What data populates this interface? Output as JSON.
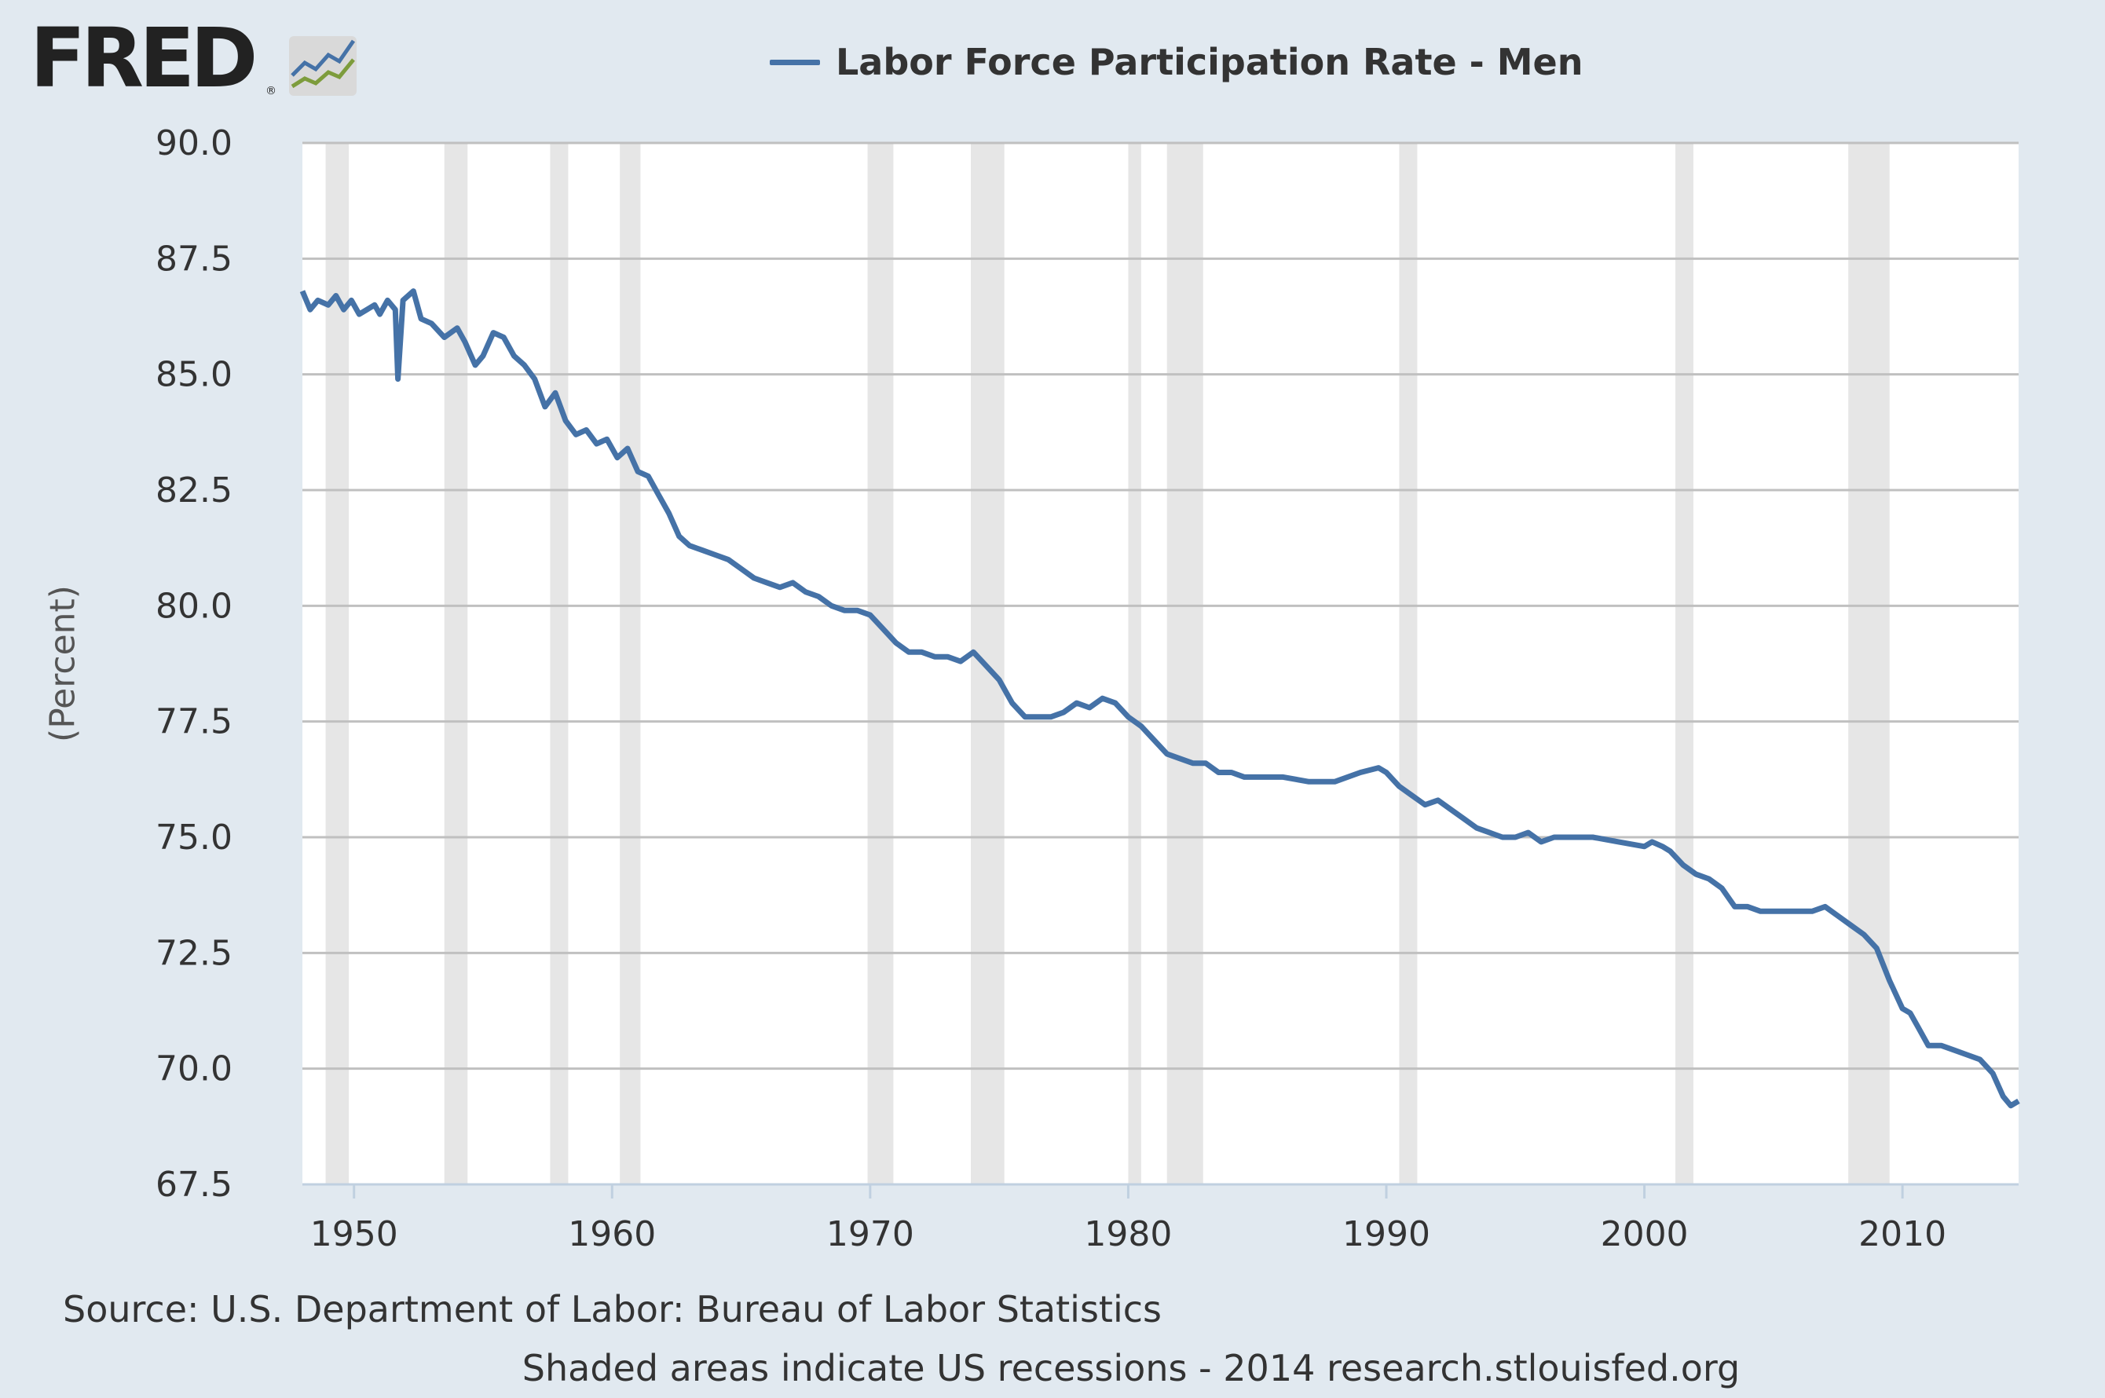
{
  "logo": {
    "text": "FRED",
    "reg": "®"
  },
  "chart_data": {
    "type": "line",
    "title": "",
    "xlabel": "",
    "ylabel": "(Percent)",
    "xlim": [
      1948.0,
      2014.5
    ],
    "ylim": [
      67.5,
      90.0
    ],
    "yticks": [
      "90.0",
      "87.5",
      "85.0",
      "82.5",
      "80.0",
      "77.5",
      "75.0",
      "72.5",
      "70.0",
      "67.5"
    ],
    "xticks": [
      "1950",
      "1960",
      "1970",
      "1980",
      "1990",
      "2000",
      "2010"
    ],
    "grid": true,
    "legend_position": "top-center",
    "series": [
      {
        "name": "Labor Force Participation Rate - Men",
        "color": "#4572a7",
        "x": [
          1948.0,
          1948.3,
          1948.6,
          1949.0,
          1949.3,
          1949.6,
          1949.9,
          1950.2,
          1950.5,
          1950.8,
          1951.0,
          1951.3,
          1951.6,
          1951.7,
          1951.9,
          1952.3,
          1952.6,
          1953.0,
          1953.5,
          1954.0,
          1954.3,
          1954.7,
          1955.0,
          1955.4,
          1955.8,
          1956.2,
          1956.6,
          1957.0,
          1957.4,
          1957.8,
          1958.2,
          1958.6,
          1959.0,
          1959.4,
          1959.8,
          1960.2,
          1960.6,
          1961.0,
          1961.4,
          1961.8,
          1962.2,
          1962.6,
          1963.0,
          1963.5,
          1964.0,
          1964.5,
          1965.0,
          1965.5,
          1966.0,
          1966.5,
          1967.0,
          1967.5,
          1968.0,
          1968.5,
          1969.0,
          1969.5,
          1970.0,
          1970.5,
          1971.0,
          1971.5,
          1972.0,
          1972.5,
          1973.0,
          1973.5,
          1974.0,
          1974.5,
          1975.0,
          1975.5,
          1976.0,
          1976.5,
          1977.0,
          1977.5,
          1978.0,
          1978.5,
          1979.0,
          1979.5,
          1980.0,
          1980.5,
          1981.0,
          1981.5,
          1982.0,
          1982.5,
          1983.0,
          1983.5,
          1984.0,
          1984.5,
          1985.0,
          1986.0,
          1987.0,
          1988.0,
          1989.0,
          1989.7,
          1990.0,
          1990.5,
          1991.0,
          1991.5,
          1992.0,
          1992.5,
          1993.0,
          1993.5,
          1994.0,
          1994.5,
          1995.0,
          1995.5,
          1996.0,
          1996.5,
          1997.0,
          1998.0,
          1999.0,
          2000.0,
          2000.3,
          2000.7,
          2001.0,
          2001.5,
          2002.0,
          2002.5,
          2003.0,
          2003.5,
          2004.0,
          2004.5,
          2005.0,
          2005.5,
          2006.0,
          2006.5,
          2007.0,
          2007.5,
          2008.0,
          2008.5,
          2009.0,
          2009.5,
          2010.0,
          2010.3,
          2010.6,
          2011.0,
          2011.5,
          2012.0,
          2012.5,
          2013.0,
          2013.5,
          2013.9,
          2014.2,
          2014.5
        ],
        "y": [
          86.8,
          86.4,
          86.6,
          86.5,
          86.7,
          86.4,
          86.6,
          86.3,
          86.4,
          86.5,
          86.3,
          86.6,
          86.4,
          84.9,
          86.6,
          86.8,
          86.2,
          86.1,
          85.8,
          86.0,
          85.7,
          85.2,
          85.4,
          85.9,
          85.8,
          85.4,
          85.2,
          84.9,
          84.3,
          84.6,
          84.0,
          83.7,
          83.8,
          83.5,
          83.6,
          83.2,
          83.4,
          82.9,
          82.8,
          82.4,
          82.0,
          81.5,
          81.3,
          81.2,
          81.1,
          81.0,
          80.8,
          80.6,
          80.5,
          80.4,
          80.5,
          80.3,
          80.2,
          80.0,
          79.9,
          79.9,
          79.8,
          79.5,
          79.2,
          79.0,
          79.0,
          78.9,
          78.9,
          78.8,
          79.0,
          78.7,
          78.4,
          77.9,
          77.6,
          77.6,
          77.6,
          77.7,
          77.9,
          77.8,
          78.0,
          77.9,
          77.6,
          77.4,
          77.1,
          76.8,
          76.7,
          76.6,
          76.6,
          76.4,
          76.4,
          76.3,
          76.3,
          76.3,
          76.2,
          76.2,
          76.4,
          76.5,
          76.4,
          76.1,
          75.9,
          75.7,
          75.8,
          75.6,
          75.4,
          75.2,
          75.1,
          75.0,
          75.0,
          75.1,
          74.9,
          75.0,
          75.0,
          75.0,
          74.9,
          74.8,
          74.9,
          74.8,
          74.7,
          74.4,
          74.2,
          74.1,
          73.9,
          73.5,
          73.5,
          73.4,
          73.4,
          73.4,
          73.4,
          73.4,
          73.5,
          73.3,
          73.1,
          72.9,
          72.6,
          71.9,
          71.3,
          71.2,
          70.9,
          70.5,
          70.5,
          70.4,
          70.3,
          70.2,
          69.9,
          69.4,
          69.2,
          69.3
        ]
      }
    ],
    "recessions": [
      [
        1948.9,
        1949.8
      ],
      [
        1953.5,
        1954.4
      ],
      [
        1957.6,
        1958.3
      ],
      [
        1960.3,
        1961.1
      ],
      [
        1969.9,
        1970.9
      ],
      [
        1973.9,
        1975.2
      ],
      [
        1980.0,
        1980.5
      ],
      [
        1981.5,
        1982.9
      ],
      [
        1990.5,
        1991.2
      ],
      [
        2001.2,
        2001.9
      ],
      [
        2007.9,
        2009.5
      ]
    ]
  },
  "footer": {
    "source": "Source: U.S. Department of Labor: Bureau of Labor Statistics",
    "note": "Shaded areas indicate US recessions - 2014 research.stlouisfed.org"
  }
}
